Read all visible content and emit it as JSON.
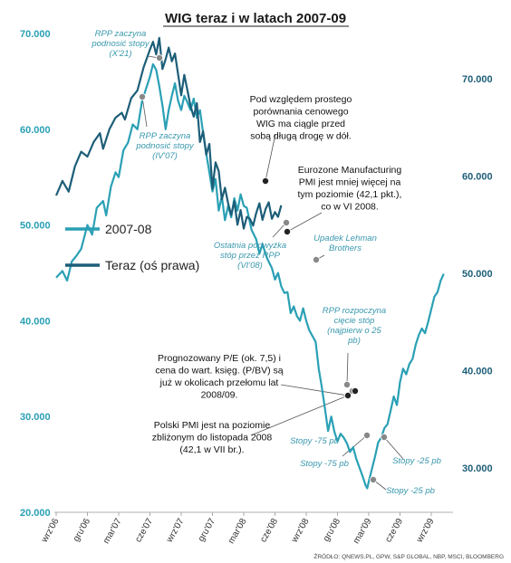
{
  "chart_data": {
    "type": "line",
    "title": "WIG teraz i w latach 2007-09",
    "source": "ŹRÓDŁO: QNEWS.PL, GPW, S&P GLOBAL, NBP, MSCI, BLOOMBERG",
    "x_ticks": [
      "wrz'06",
      "gru'06",
      "mar'07",
      "cze'07",
      "wrz'07",
      "gru'07",
      "mar'08",
      "cze'08",
      "wrz'08",
      "gru'08",
      "mar'09",
      "cze'09",
      "wrz'09"
    ],
    "y_left": {
      "ticks": [
        "70.000",
        "60.000",
        "50.000",
        "40.000",
        "30.000",
        "20.000"
      ],
      "ylim": [
        20000,
        70000
      ]
    },
    "y_right": {
      "ticks": [
        "70.000",
        "60.000",
        "50.000",
        "40.000",
        "30.000"
      ],
      "ylim": [
        25000,
        75000
      ]
    },
    "legend": [
      "2007-08",
      "Teraz (oś prawa)"
    ],
    "colors": {
      "series_2007": "#2aa0b5",
      "series_teraz": "#1d5e78",
      "marker": "#888888",
      "marker_dark": "#222222"
    },
    "series": [
      {
        "name": "2007-08",
        "axis": "left",
        "points": [
          [
            0,
            44500
          ],
          [
            0.2,
            45200
          ],
          [
            0.35,
            44200
          ],
          [
            0.5,
            46200
          ],
          [
            0.65,
            46800
          ],
          [
            0.8,
            47500
          ],
          [
            1.0,
            50000
          ],
          [
            1.15,
            49000
          ],
          [
            1.3,
            51800
          ],
          [
            1.5,
            52500
          ],
          [
            1.6,
            51000
          ],
          [
            1.75,
            54000
          ],
          [
            1.9,
            55500
          ],
          [
            2.0,
            55000
          ],
          [
            2.15,
            57800
          ],
          [
            2.3,
            58600
          ],
          [
            2.45,
            60500
          ],
          [
            2.6,
            60000
          ],
          [
            2.75,
            63000
          ],
          [
            2.9,
            64500
          ],
          [
            3.0,
            65500
          ],
          [
            3.1,
            66800
          ],
          [
            3.2,
            66200
          ],
          [
            3.3,
            64500
          ],
          [
            3.4,
            62500
          ],
          [
            3.5,
            60000
          ],
          [
            3.6,
            62000
          ],
          [
            3.7,
            63500
          ],
          [
            3.8,
            64800
          ],
          [
            3.9,
            63000
          ],
          [
            4.0,
            62000
          ],
          [
            4.1,
            63500
          ],
          [
            4.2,
            62800
          ],
          [
            4.3,
            62000
          ],
          [
            4.4,
            63200
          ],
          [
            4.5,
            61200
          ],
          [
            4.6,
            62000
          ],
          [
            4.7,
            59600
          ],
          [
            4.8,
            57500
          ],
          [
            4.9,
            55500
          ],
          [
            5.0,
            53500
          ],
          [
            5.1,
            54800
          ],
          [
            5.2,
            51500
          ],
          [
            5.3,
            53000
          ],
          [
            5.4,
            50500
          ],
          [
            5.5,
            52000
          ],
          [
            5.6,
            50800
          ],
          [
            5.7,
            52800
          ],
          [
            5.8,
            51500
          ],
          [
            5.9,
            53200
          ],
          [
            6.0,
            52000
          ],
          [
            6.1,
            51800
          ],
          [
            6.25,
            49500
          ],
          [
            6.4,
            48500
          ],
          [
            6.5,
            47000
          ],
          [
            6.6,
            48000
          ],
          [
            6.75,
            46500
          ],
          [
            6.9,
            45500
          ],
          [
            7.0,
            44300
          ],
          [
            7.1,
            45000
          ],
          [
            7.2,
            43600
          ],
          [
            7.3,
            42900
          ],
          [
            7.4,
            43000
          ],
          [
            7.5,
            40800
          ],
          [
            7.6,
            41500
          ],
          [
            7.7,
            40500
          ],
          [
            7.8,
            40000
          ],
          [
            7.9,
            41300
          ],
          [
            8.0,
            40000
          ],
          [
            8.1,
            39000
          ],
          [
            8.2,
            38400
          ],
          [
            8.3,
            37800
          ],
          [
            8.4,
            35000
          ],
          [
            8.5,
            33000
          ],
          [
            8.6,
            30800
          ],
          [
            8.7,
            28500
          ],
          [
            8.8,
            30000
          ],
          [
            8.9,
            28400
          ],
          [
            9.0,
            27400
          ],
          [
            9.1,
            28200
          ],
          [
            9.2,
            27800
          ],
          [
            9.3,
            27200
          ],
          [
            9.4,
            26300
          ],
          [
            9.5,
            26800
          ],
          [
            9.6,
            25600
          ],
          [
            9.7,
            24700
          ],
          [
            9.8,
            23800
          ],
          [
            9.9,
            22800
          ],
          [
            9.95,
            22500
          ],
          [
            10.0,
            23200
          ],
          [
            10.1,
            24500
          ],
          [
            10.2,
            25800
          ],
          [
            10.3,
            27300
          ],
          [
            10.4,
            27800
          ],
          [
            10.5,
            28800
          ],
          [
            10.6,
            29200
          ],
          [
            10.7,
            30600
          ],
          [
            10.8,
            32100
          ],
          [
            10.9,
            31200
          ],
          [
            11.0,
            33600
          ],
          [
            11.1,
            35000
          ],
          [
            11.2,
            34400
          ],
          [
            11.3,
            35500
          ],
          [
            11.4,
            36000
          ],
          [
            11.5,
            37500
          ],
          [
            11.6,
            38500
          ],
          [
            11.7,
            39200
          ],
          [
            11.8,
            38700
          ],
          [
            11.9,
            39900
          ],
          [
            12.0,
            41200
          ],
          [
            12.1,
            42500
          ],
          [
            12.2,
            43000
          ],
          [
            12.3,
            44200
          ],
          [
            12.4,
            44900
          ]
        ]
      },
      {
        "name": "Teraz (oś prawa)",
        "axis": "right",
        "points": [
          [
            0,
            58000
          ],
          [
            0.2,
            59500
          ],
          [
            0.4,
            58400
          ],
          [
            0.6,
            61000
          ],
          [
            0.8,
            62500
          ],
          [
            1.0,
            62000
          ],
          [
            1.2,
            63500
          ],
          [
            1.4,
            64400
          ],
          [
            1.5,
            62800
          ],
          [
            1.7,
            64800
          ],
          [
            1.9,
            66000
          ],
          [
            2.1,
            66500
          ],
          [
            2.2,
            65800
          ],
          [
            2.4,
            68000
          ],
          [
            2.6,
            68800
          ],
          [
            2.8,
            71200
          ],
          [
            3.0,
            73000
          ],
          [
            3.1,
            73800
          ],
          [
            3.2,
            72500
          ],
          [
            3.3,
            74200
          ],
          [
            3.4,
            71000
          ],
          [
            3.5,
            72000
          ],
          [
            3.6,
            73200
          ],
          [
            3.7,
            71800
          ],
          [
            3.8,
            72600
          ],
          [
            3.9,
            70500
          ],
          [
            4.0,
            68300
          ],
          [
            4.1,
            70400
          ],
          [
            4.2,
            68800
          ],
          [
            4.3,
            67200
          ],
          [
            4.4,
            66100
          ],
          [
            4.5,
            67500
          ],
          [
            4.6,
            63500
          ],
          [
            4.7,
            64600
          ],
          [
            4.8,
            62200
          ],
          [
            4.9,
            63300
          ],
          [
            5.0,
            58700
          ],
          [
            5.1,
            61400
          ],
          [
            5.2,
            60500
          ],
          [
            5.3,
            57600
          ],
          [
            5.4,
            58800
          ],
          [
            5.5,
            57200
          ],
          [
            5.6,
            56000
          ],
          [
            5.7,
            57400
          ],
          [
            5.8,
            55000
          ],
          [
            5.9,
            56500
          ],
          [
            6.0,
            54600
          ],
          [
            6.1,
            55800
          ],
          [
            6.2,
            55600
          ],
          [
            6.3,
            54900
          ],
          [
            6.4,
            56200
          ],
          [
            6.5,
            57200
          ],
          [
            6.6,
            55500
          ],
          [
            6.7,
            56600
          ],
          [
            6.8,
            57300
          ],
          [
            6.9,
            55600
          ],
          [
            7.0,
            56300
          ],
          [
            7.1,
            55800
          ],
          [
            7.2,
            57000
          ]
        ]
      }
    ],
    "annotations": [
      {
        "id": "rpp-x21",
        "style": "italic",
        "lines": [
          "RPP zaczyna",
          "podnosić stopy",
          "(X'21)"
        ]
      },
      {
        "id": "rpp-iv07",
        "style": "italic",
        "lines": [
          "RPP zaczyna",
          "podnosić stopy",
          "(IV'07)"
        ]
      },
      {
        "id": "prostego",
        "style": "black",
        "lines": [
          "Pod względem prostego",
          "porównania cenowego",
          "WIG ma ciągle przed",
          "sobą długą drogę w dół."
        ]
      },
      {
        "id": "pmi-euro",
        "style": "black",
        "lines": [
          "Eurozone Manufacturing",
          "PMI jest mniej więcej na",
          "tym poziomie (42,1 pkt.),",
          "co w VI 2008."
        ]
      },
      {
        "id": "ostatnia",
        "style": "italic",
        "lines": [
          "Ostatnia podwyżka",
          "stóp przez RPP",
          "(VI'08)"
        ]
      },
      {
        "id": "lehman",
        "style": "italic",
        "lines": [
          "Upadek Lehman",
          "Brothers"
        ]
      },
      {
        "id": "rpp-ciecie",
        "style": "italic",
        "lines": [
          "RPP rozpoczyna",
          "cięcie stóp",
          "(najpierw o 25",
          "pb)"
        ]
      },
      {
        "id": "pe-pbv",
        "style": "black",
        "lines": [
          "Prognozowany P/E (ok. 7,5) i",
          "cena do wart. księg. (P/BV) są",
          "już w okolicach przełomu lat",
          "2008/09."
        ]
      },
      {
        "id": "pmi-pl",
        "style": "black",
        "lines": [
          "Polski PMI jest na poziomie",
          "zbliżonym do listopada 2008",
          "(42,1 w VII br.)."
        ]
      },
      {
        "id": "stopy-75a",
        "style": "italic",
        "lines": [
          "Stopy -75 pb"
        ]
      },
      {
        "id": "stopy-75b",
        "style": "italic",
        "lines": [
          "Stopy -75 pb"
        ]
      },
      {
        "id": "stopy-25a",
        "style": "italic",
        "lines": [
          "Stopy -25 pb"
        ]
      },
      {
        "id": "stopy-25b",
        "style": "italic",
        "lines": [
          "Stopy -25 pb"
        ]
      }
    ]
  }
}
